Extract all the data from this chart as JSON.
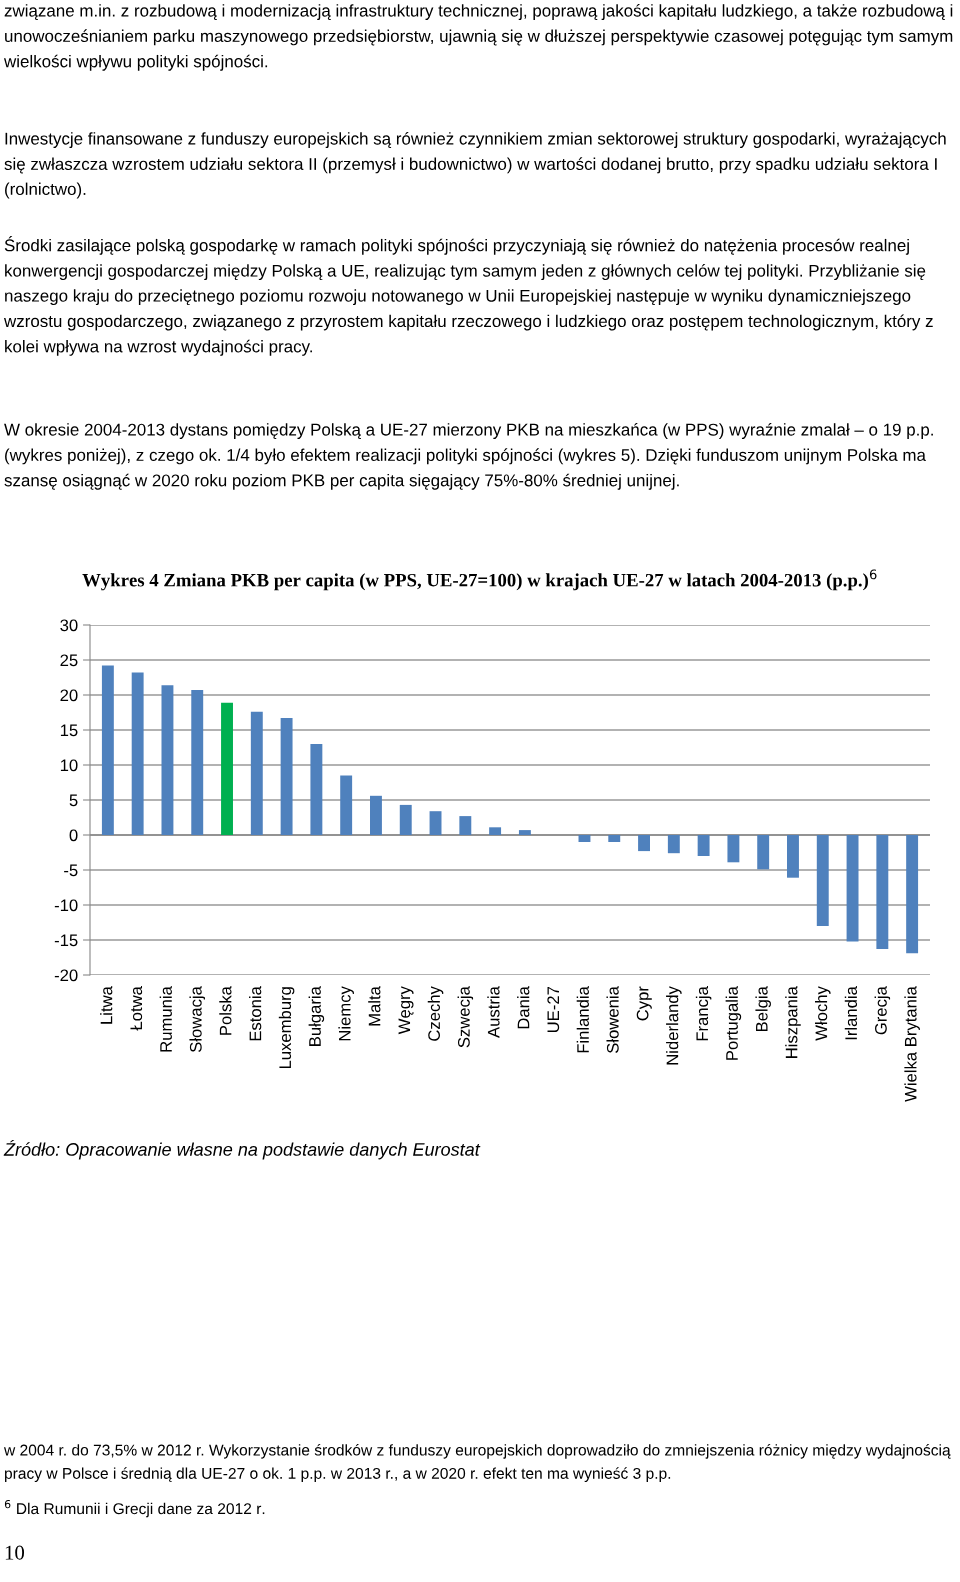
{
  "chart_data": {
    "type": "bar",
    "title": "Wykres 4 Zmiana PKB per capita (w PPS, UE-27=100) w krajach UE-27 w latach 2004-2013 (p.p.)$^{6}$",
    "categories": [
      "Litwa",
      "Łotwa",
      "Rumunia",
      "Słowacja",
      "Polska",
      "Estonia",
      "Luxemburg",
      "Bułgaria",
      "Niemcy",
      "Malta",
      "Węgry",
      "Czechy",
      "Szwecja",
      "Austria",
      "Dania",
      "UE-27",
      "Finlandia",
      "Słowenia",
      "Cypr",
      "Niderlandy",
      "Francja",
      "Portugalia",
      "Belgia",
      "Hiszpania",
      "Włochy",
      "Irlandia",
      "Grecja",
      "Wielka Brytania"
    ],
    "values": [
      24.2,
      23.2,
      21.4,
      20.7,
      18.9,
      17.6,
      16.7,
      13.0,
      8.5,
      5.6,
      4.3,
      3.4,
      2.7,
      1.1,
      0.7,
      0,
      -1.0,
      -1.0,
      -2.3,
      -2.6,
      -3.0,
      -3.9,
      -4.9,
      -6.1,
      -13.0,
      -15.2,
      -16.3,
      -16.9
    ],
    "colors": [
      "#4f81bd",
      "#4f81bd",
      "#4f81bd",
      "#4f81bd",
      "#00b050",
      "#4f81bd",
      "#4f81bd",
      "#4f81bd",
      "#4f81bd",
      "#4f81bd",
      "#4f81bd",
      "#4f81bd",
      "#4f81bd",
      "#4f81bd",
      "#4f81bd",
      "#4f81bd",
      "#4f81bd",
      "#4f81bd",
      "#4f81bd",
      "#4f81bd",
      "#4f81bd",
      "#4f81bd",
      "#4f81bd",
      "#4f81bd",
      "#4f81bd",
      "#4f81bd",
      "#4f81bd",
      "#4f81bd"
    ],
    "ylim": [
      -20,
      30
    ],
    "yticks": [
      -20,
      -15,
      -10,
      -5,
      0,
      5,
      10,
      15,
      20,
      25,
      30
    ],
    "grid": "y",
    "legend": false,
    "annotations": [
      "związane m.in. z rozbudową i modernizacją infrastruktury technicznej, poprawą jakości kapitału ludzkiego, a także rozbudową i unowocześnianiem parku maszynowego przedsiębiorstw, ujawnią się w dłuższej perspektywie czasowej potęgując tym samym wielkości wpływu polityki spójności.",
      "Inwestycje finansowane z funduszy europejskich są również czynnikiem zmian sektorowej struktury gospodarki, wyrażających się zwłaszcza wzrostem udziału sektora II (przemysł i budownictwo) w wartości dodanej brutto, przy spadku udziału sektora I (rolnictwo).",
      "Środki zasilające polską gospodarkę w ramach polityki spójności przyczyniają się również do natężenia procesów realnej konwergencji gospodarczej między Polską a UE, realizując tym samym jeden z głównych celów tej polityki. Przybliżanie się naszego kraju do przeciętnego poziomu rozwoju notowanego w Unii Europejskiej następuje w wyniku dynamiczniejszego wzrostu gospodarczego, związanego z przyrostem kapitału rzeczowego i ludzkiego oraz postępem technologicznym, który z kolei wpływa na wzrost wydajności pracy.",
      "W okresie 2004-2013 dystans pomiędzy Polską a UE-27 mierzony PKB na mieszkańca (w PPS) wyraźnie zmalał – o 19 p.p. (wykres poniżej), z czego ok. 1/4 było efektem realizacji polityki spójności (wykres 5). Dzięki funduszom unijnym Polska ma szansę osiągnąć w 2020 roku poziom PKB per capita sięgający 75%-80% średniej unijnej.",
      "Źródło: Opracowanie własne na podstawie danych Eurostat",
      "w 2004 r. do 73,5% w 2012 r. Wykorzystanie środków z funduszy europejskich doprowadziło do zmniejszenia różnicy między wydajnością pracy w Polsce i średnią dla UE-27 o ok. 1 p.p. w 2013 r., a w 2020 r. efekt ten ma wynieść 3 p.p.",
      "$^{6}$ Dla Rumunii i Grecji dane za 2012 r.",
      "10"
    ]
  }
}
